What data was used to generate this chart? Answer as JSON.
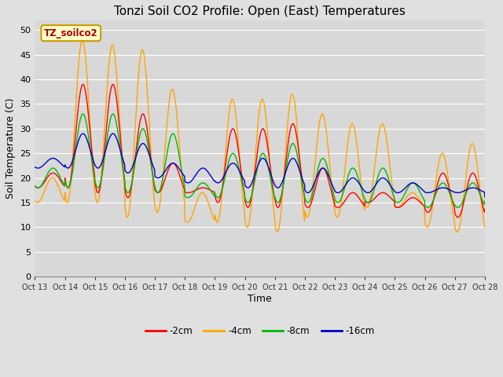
{
  "title": "Tonzi Soil CO2 Profile: Open (East) Temperatures",
  "xlabel": "Time",
  "ylabel": "Soil Temperature (C)",
  "ylim": [
    0,
    52
  ],
  "yticks": [
    0,
    5,
    10,
    15,
    20,
    25,
    30,
    35,
    40,
    45,
    50
  ],
  "x_labels": [
    "Oct 13",
    "Oct 14",
    "Oct 15",
    "Oct 16",
    "Oct 17",
    "Oct 18",
    "Oct 19",
    "Oct 20",
    "Oct 21",
    "Oct 22",
    "Oct 23",
    "Oct 24",
    "Oct 25",
    "Oct 26",
    "Oct 27",
    "Oct 28"
  ],
  "legend_label": "TZ_soilco2",
  "line_labels": [
    "-2cm",
    "-4cm",
    "-8cm",
    "-16cm"
  ],
  "line_colors": [
    "#ff0000",
    "#ffa500",
    "#00bb00",
    "#0000cc"
  ],
  "bg_color": "#e0e0e0",
  "plot_bg_color": "#d8d8d8",
  "grid_color": "#ffffff",
  "annotation_fc": "#ffffcc",
  "annotation_ec": "#cc9900",
  "annotation_tc": "#aa0000"
}
